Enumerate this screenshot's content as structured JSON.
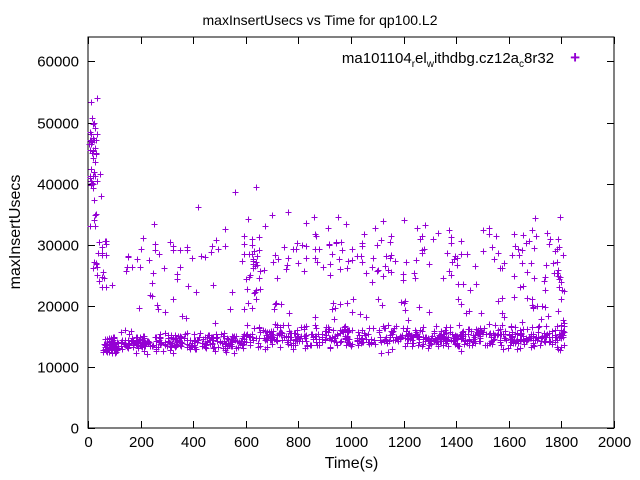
{
  "title": "maxInsertUsecs vs Time for qp100.L2",
  "legend": {
    "marker_glyph": "+",
    "parts": [
      {
        "text": "ma101104",
        "sub": false
      },
      {
        "text": "r",
        "sub": true
      },
      {
        "text": "el",
        "sub": false
      },
      {
        "text": "w",
        "sub": true
      },
      {
        "text": "ithdbg.cz12a",
        "sub": false
      },
      {
        "text": "c",
        "sub": true
      },
      {
        "text": "8r32",
        "sub": false
      }
    ]
  },
  "accent_color": "#9400d3",
  "chart_data": {
    "type": "scatter",
    "title": "maxInsertUsecs vs Time for qp100.L2",
    "xlabel": "Time(s)",
    "ylabel": "maxInsertUsecs",
    "xlim": [
      0,
      2000
    ],
    "ylim": [
      0,
      64000
    ],
    "xticks": [
      0,
      200,
      400,
      600,
      800,
      1000,
      1200,
      1400,
      1600,
      1800,
      2000
    ],
    "yticks": [
      0,
      10000,
      20000,
      30000,
      40000,
      50000,
      60000
    ],
    "grid": false,
    "legend_position": "top-right-inside",
    "series": [
      {
        "name": "ma101104_rel_withdbg.cz12a_c8r32",
        "marker": "plus",
        "color": "#9400d3"
      }
    ],
    "seed": 42,
    "point_clusters": [
      {
        "name": "startup-spike",
        "count": 40,
        "x_range": [
          5,
          35
        ],
        "y_mean": 43000,
        "y_sd": 5500,
        "y_clamp": [
          33000,
          54000
        ]
      },
      {
        "name": "startup-tail",
        "count": 22,
        "x_range": [
          20,
          75
        ],
        "y_mean": 28000,
        "y_sd": 3500,
        "y_clamp": [
          23000,
          36000
        ]
      },
      {
        "name": "startup-low-dense",
        "count": 45,
        "x_range": [
          55,
          115
        ],
        "y_mean": 13300,
        "y_sd": 700,
        "y_clamp": [
          11500,
          15500
        ]
      },
      {
        "name": "main-band-early",
        "count": 260,
        "x_range": [
          80,
          600
        ],
        "y_mean": 14100,
        "y_sd": 800,
        "y_clamp": [
          11800,
          17500
        ]
      },
      {
        "name": "main-band-mid",
        "count": 300,
        "x_range": [
          600,
          1300
        ],
        "y_mean": 14900,
        "y_sd": 900,
        "y_clamp": [
          12000,
          18500
        ]
      },
      {
        "name": "main-band-late",
        "count": 260,
        "x_range": [
          1300,
          1810
        ],
        "y_mean": 14800,
        "y_sd": 900,
        "y_clamp": [
          12000,
          18500
        ]
      },
      {
        "name": "mid-scatter-early",
        "count": 30,
        "x_range": [
          120,
          560
        ],
        "y_mean": 28500,
        "y_sd": 2500,
        "y_clamp": [
          21000,
          34000
        ]
      },
      {
        "name": "mid-scatter-dense",
        "count": 110,
        "x_range": [
          560,
          1450
        ],
        "y_mean": 28500,
        "y_sd": 2700,
        "y_clamp": [
          20500,
          34500
        ]
      },
      {
        "name": "mid-scatter-late",
        "count": 45,
        "x_range": [
          1450,
          1810
        ],
        "y_mean": 27000,
        "y_sd": 3000,
        "y_clamp": [
          20000,
          34000
        ]
      },
      {
        "name": "column-620",
        "count": 25,
        "x_range": [
          590,
          660
        ],
        "y_mean": 25500,
        "y_sd": 3200,
        "y_clamp": [
          19500,
          31500
        ]
      },
      {
        "name": "column-1790",
        "count": 22,
        "x_range": [
          1775,
          1812
        ],
        "y_mean": 21000,
        "y_sd": 6000,
        "y_clamp": [
          13000,
          31000
        ]
      },
      {
        "name": "upper-band-gap",
        "count": 45,
        "x_range": [
          600,
          1800
        ],
        "y_mean": 19300,
        "y_sd": 1500,
        "y_clamp": [
          16500,
          22500
        ]
      },
      {
        "name": "upper-band-gap-early",
        "count": 15,
        "x_range": [
          150,
          600
        ],
        "y_mean": 21500,
        "y_sd": 2000,
        "y_clamp": [
          18000,
          25000
        ]
      }
    ],
    "outlier_points": [
      [
        12,
        53400
      ],
      [
        15,
        50800
      ],
      [
        22,
        49900
      ],
      [
        9,
        45500
      ],
      [
        30,
        47200
      ],
      [
        45,
        41500
      ],
      [
        50,
        38000
      ],
      [
        60,
        24500
      ],
      [
        90,
        23400
      ],
      [
        150,
        26300
      ],
      [
        185,
        27600
      ],
      [
        250,
        33400
      ],
      [
        310,
        30500
      ],
      [
        420,
        36200
      ],
      [
        470,
        29800
      ],
      [
        560,
        38600
      ],
      [
        640,
        39500
      ],
      [
        700,
        34800
      ],
      [
        760,
        35400
      ],
      [
        980,
        33400
      ],
      [
        1050,
        31800
      ],
      [
        1120,
        33900
      ],
      [
        1250,
        32700
      ],
      [
        1380,
        31200
      ],
      [
        1500,
        32400
      ],
      [
        1620,
        31800
      ],
      [
        1700,
        34400
      ],
      [
        1795,
        34600
      ],
      [
        1800,
        16800
      ],
      [
        1805,
        15200
      ]
    ]
  }
}
